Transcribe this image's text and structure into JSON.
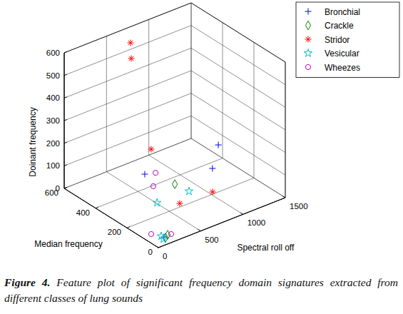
{
  "chart_data": {
    "type": "scatter3d",
    "caption_label": "Figure 4.",
    "caption": "Feature plot of significant frequency domain signatures extracted from different classes of lung sounds",
    "x_label": "Spectral roll off",
    "y_label": "Median frequency",
    "z_label": "Doinant frequency",
    "xlim": [
      0,
      1500
    ],
    "xticks": [
      0,
      500,
      1000,
      1500
    ],
    "ylim": [
      0,
      600
    ],
    "yticks": [
      0,
      200,
      400,
      600
    ],
    "zlim": [
      0,
      600
    ],
    "zticks": [
      0,
      100,
      200,
      300,
      400,
      500,
      600
    ],
    "grid": true,
    "legend": "top-right",
    "series": [
      {
        "name": "Bronchial",
        "color": "#0000ff",
        "marker": "plus",
        "x": [
          970,
          969,
          672,
          152
        ],
        "y": [
          141,
          178,
          449,
          46
        ],
        "z": [
          250,
          130,
          30,
          5
        ]
      },
      {
        "name": "Crackle",
        "color": "#008000",
        "marker": "diamond",
        "x": [
          814,
          203,
          159
        ],
        "y": [
          334,
          50,
          40
        ],
        "z": [
          15,
          5,
          3
        ]
      },
      {
        "name": "Stridor",
        "color": "#ff0000",
        "marker": "asterisk",
        "x": [
          702,
          683,
          694,
          985,
          640
        ],
        "y": [
          556,
          541,
          420,
          186,
          209
        ],
        "z": [
          560,
          500,
          150,
          20,
          10
        ]
      },
      {
        "name": "Vesicular",
        "color": "#00bfbf",
        "marker": "pentagram",
        "x": [
          848,
          483,
          145,
          130
        ],
        "y": [
          262,
          269,
          60,
          38
        ],
        "z": [
          10,
          10,
          3,
          2
        ]
      },
      {
        "name": "Wheezes",
        "color": "#bf00bf",
        "marker": "circle",
        "x": [
          740,
          621,
          92,
          237
        ],
        "y": [
          417,
          367,
          95,
          46
        ],
        "z": [
          40,
          20,
          5,
          5
        ]
      }
    ]
  }
}
